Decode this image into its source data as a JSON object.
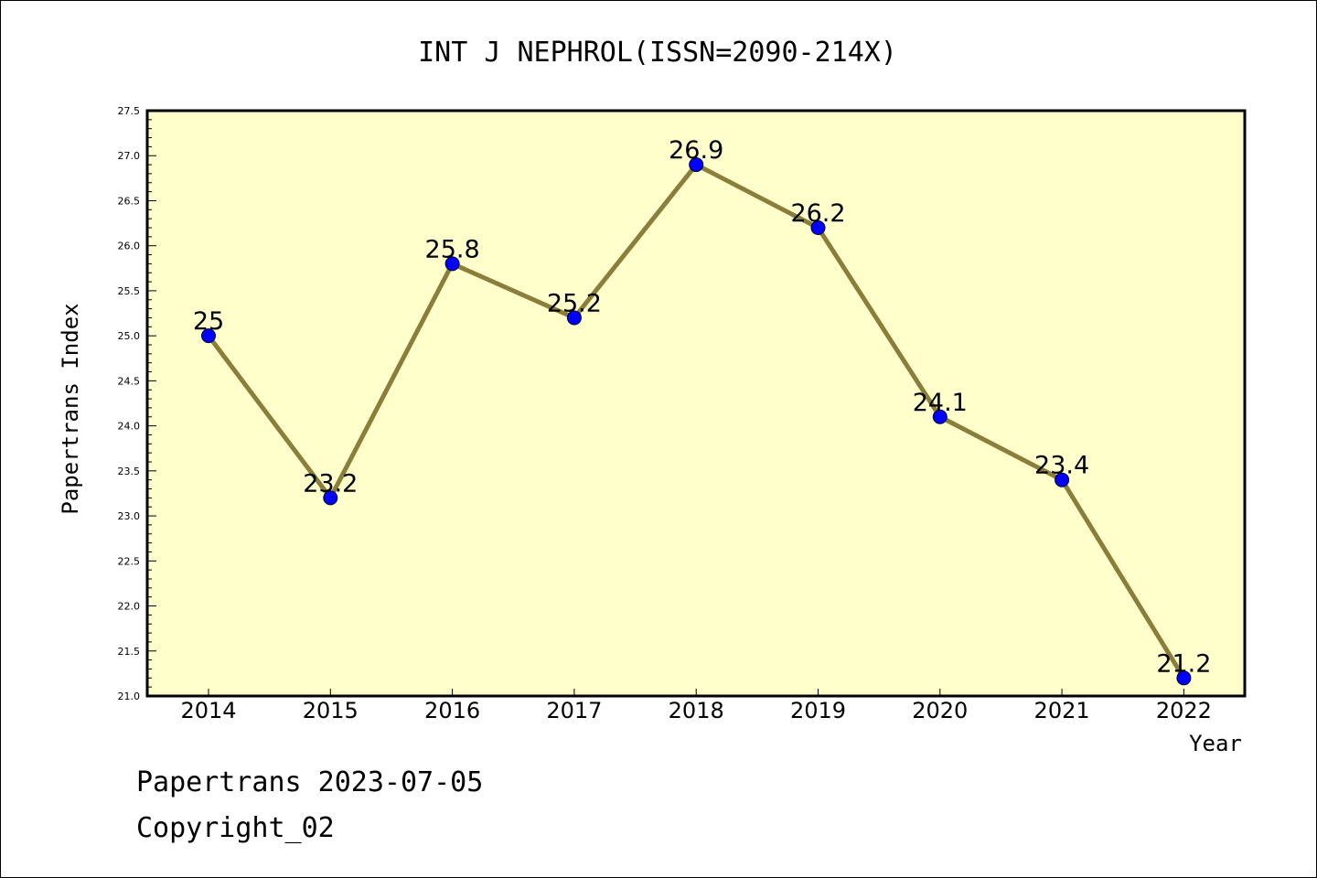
{
  "chart_data": {
    "type": "line",
    "title": "INT J NEPHROL(ISSN=2090-214X)",
    "xlabel": "Year",
    "ylabel": "Papertrans Index",
    "categories": [
      "2014",
      "2015",
      "2016",
      "2017",
      "2018",
      "2019",
      "2020",
      "2021",
      "2022"
    ],
    "series": [
      {
        "values": [
          25,
          23.2,
          25.8,
          25.2,
          26.9,
          26.2,
          24.1,
          23.4,
          21.2
        ],
        "labels": [
          "25",
          "23.2",
          "25.8",
          "25.2",
          "26.9",
          "26.2",
          "24.1",
          "23.4",
          "21.2"
        ]
      }
    ],
    "ylim": [
      21.0,
      27.5
    ],
    "yticks": [
      "21.0",
      "21.5",
      "22.0",
      "22.5",
      "23.0",
      "23.5",
      "24.0",
      "24.5",
      "25.0",
      "25.5",
      "26.0",
      "26.5",
      "27.0",
      "27.5"
    ],
    "grid": false,
    "colors": {
      "plot_background": "#ffffcc",
      "line": "#8b7d3a",
      "marker": "#0000ff",
      "axis": "#000000"
    }
  },
  "footer": {
    "line1": "Papertrans 2023-07-05",
    "line2": "Copyright_02"
  }
}
